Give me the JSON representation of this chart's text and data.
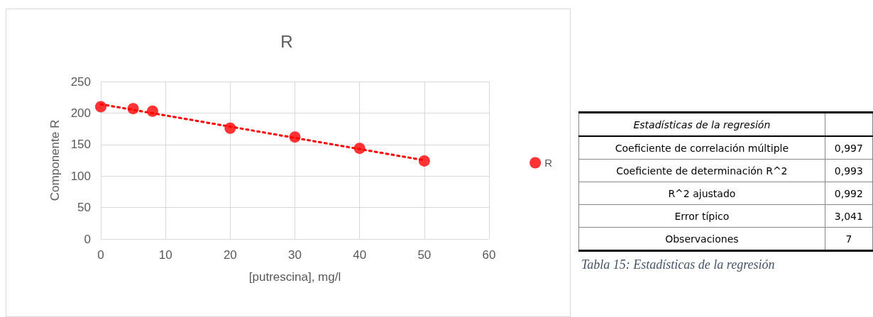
{
  "chart_data": [
    {
      "type": "scatter",
      "title": "R",
      "xlabel": "[putrescina], mg/l",
      "ylabel": "Componente R",
      "xlim": [
        0,
        60
      ],
      "xticks": [
        0,
        10,
        20,
        30,
        40,
        50,
        60
      ],
      "ylim": [
        0,
        250
      ],
      "yticks": [
        0,
        50,
        100,
        150,
        200,
        250
      ],
      "grid": true,
      "legend": "right",
      "marker": "circle",
      "series": [
        {
          "name": "R",
          "color": "#ff0000",
          "x": [
            0,
            5,
            8,
            20,
            30,
            40,
            50
          ],
          "values": [
            210,
            207,
            203,
            176,
            162,
            144,
            124
          ]
        },
        {
          "type": "line",
          "color": "#ff0000",
          "line_style": "dotted",
          "marker": "none",
          "x": [
            0,
            50
          ],
          "values": [
            214,
            125
          ]
        }
      ]
    },
    {
      "type": "other",
      "title": "Estadísticas de la regresión",
      "categories": [
        "Coeficiente de correlación múltiple",
        "Coeficiente de determinación R^2",
        "R^2 ajustado",
        "Error típico",
        "Observaciones"
      ],
      "value_labels": [
        "0,997",
        "0,993",
        "0,992",
        "3,041",
        "7"
      ],
      "annotations": [
        "Tabla 15: Estadísticas de la regresión"
      ]
    }
  ]
}
